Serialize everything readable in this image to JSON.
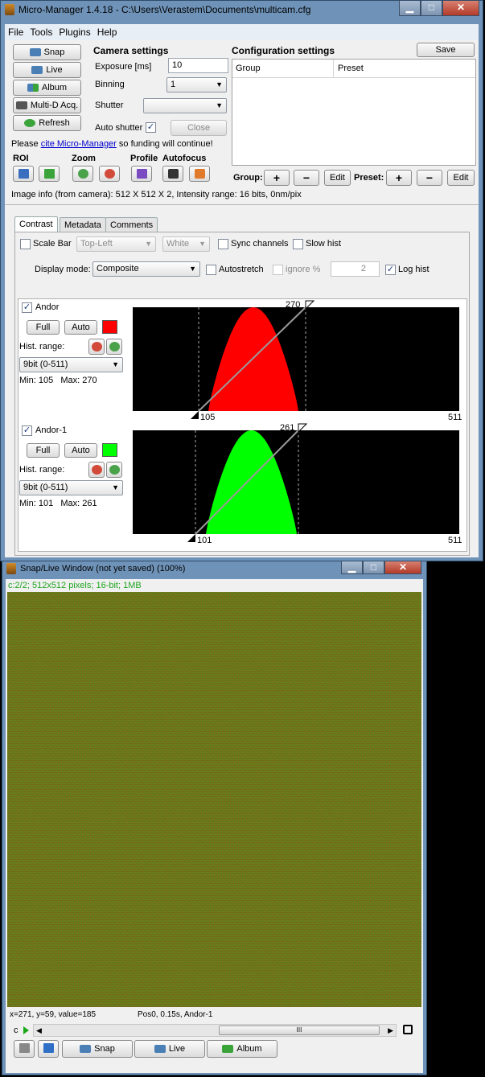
{
  "main_window": {
    "title": "Micro-Manager 1.4.18 - C:\\Users\\Verastem\\Documents\\multicam.cfg",
    "menu": [
      "File",
      "Tools",
      "Plugins",
      "Help"
    ],
    "window_buttons": {
      "minimize": "▁",
      "maximize": "□",
      "close": "✕"
    },
    "left_buttons": {
      "snap": "Snap",
      "live": "Live",
      "album": "Album",
      "multid": "Multi-D Acq.",
      "refresh": "Refresh"
    },
    "camera": {
      "title": "Camera settings",
      "exposure_label": "Exposure [ms]",
      "exposure_value": "10",
      "binning_label": "Binning",
      "binning_value": "1",
      "shutter_label": "Shutter",
      "shutter_value": "",
      "auto_shutter_label": "Auto shutter",
      "auto_shutter_checked": true,
      "close_label": "Close"
    },
    "config": {
      "title": "Configuration settings",
      "save_label": "Save",
      "columns": [
        "Group",
        "Preset"
      ],
      "group_label": "Group:",
      "preset_label": "Preset:",
      "plus": "+",
      "minus": "−",
      "edit": "Edit"
    },
    "cite": {
      "prefix": "Please ",
      "link": "cite Micro-Manager",
      "suffix": " so funding will continue!"
    },
    "tools": {
      "roi": "ROI",
      "zoom": "Zoom",
      "profile": "Profile",
      "autofocus": "Autofocus"
    },
    "image_info": "Image info (from camera): 512 X 512 X 2, Intensity range: 16 bits, 0nm/pix",
    "tabs": [
      "Contrast",
      "Metadata",
      "Comments"
    ],
    "contrast": {
      "scale_bar_label": "Scale Bar",
      "scale_bar_checked": false,
      "position_value": "Top-Left",
      "color_value": "White",
      "sync_label": "Sync channels",
      "slow_hist_label": "Slow hist",
      "display_mode_label": "Display mode:",
      "display_mode_value": "Composite",
      "autostretch_label": "Autostretch",
      "ignore_label": "ignore %",
      "ignore_value": "2",
      "log_hist_label": "Log hist",
      "log_hist_checked": true
    },
    "channels": [
      {
        "name": "Andor",
        "checked": true,
        "color": "#ff0000",
        "full": "Full",
        "auto": "Auto",
        "hist_range_label": "Hist. range:",
        "range_value": "9bit (0-511)",
        "min_max": "Min: 105   Max: 270",
        "min": 105,
        "max": 270,
        "top_label": "270",
        "bottom_label": "105",
        "axis_max": "511"
      },
      {
        "name": "Andor-1",
        "checked": true,
        "color": "#00ff00",
        "full": "Full",
        "auto": "Auto",
        "hist_range_label": "Hist. range:",
        "range_value": "9bit (0-511)",
        "min_max": "Min: 101   Max: 261",
        "min": 101,
        "max": 261,
        "top_label": "261",
        "bottom_label": "101",
        "axis_max": "511"
      }
    ]
  },
  "snap_window": {
    "title": "Snap/Live Window (not yet saved) (100%)",
    "info": "c:2/2; 512x512 pixels; 16-bit; 1MB",
    "status_left": "x=271, y=59, value=185",
    "status_right": "Pos0, 0.15s, Andor-1",
    "channel_letter": "c",
    "scroll_grip": "III",
    "buttons": {
      "snap": "Snap",
      "live": "Live",
      "album": "Album"
    }
  }
}
